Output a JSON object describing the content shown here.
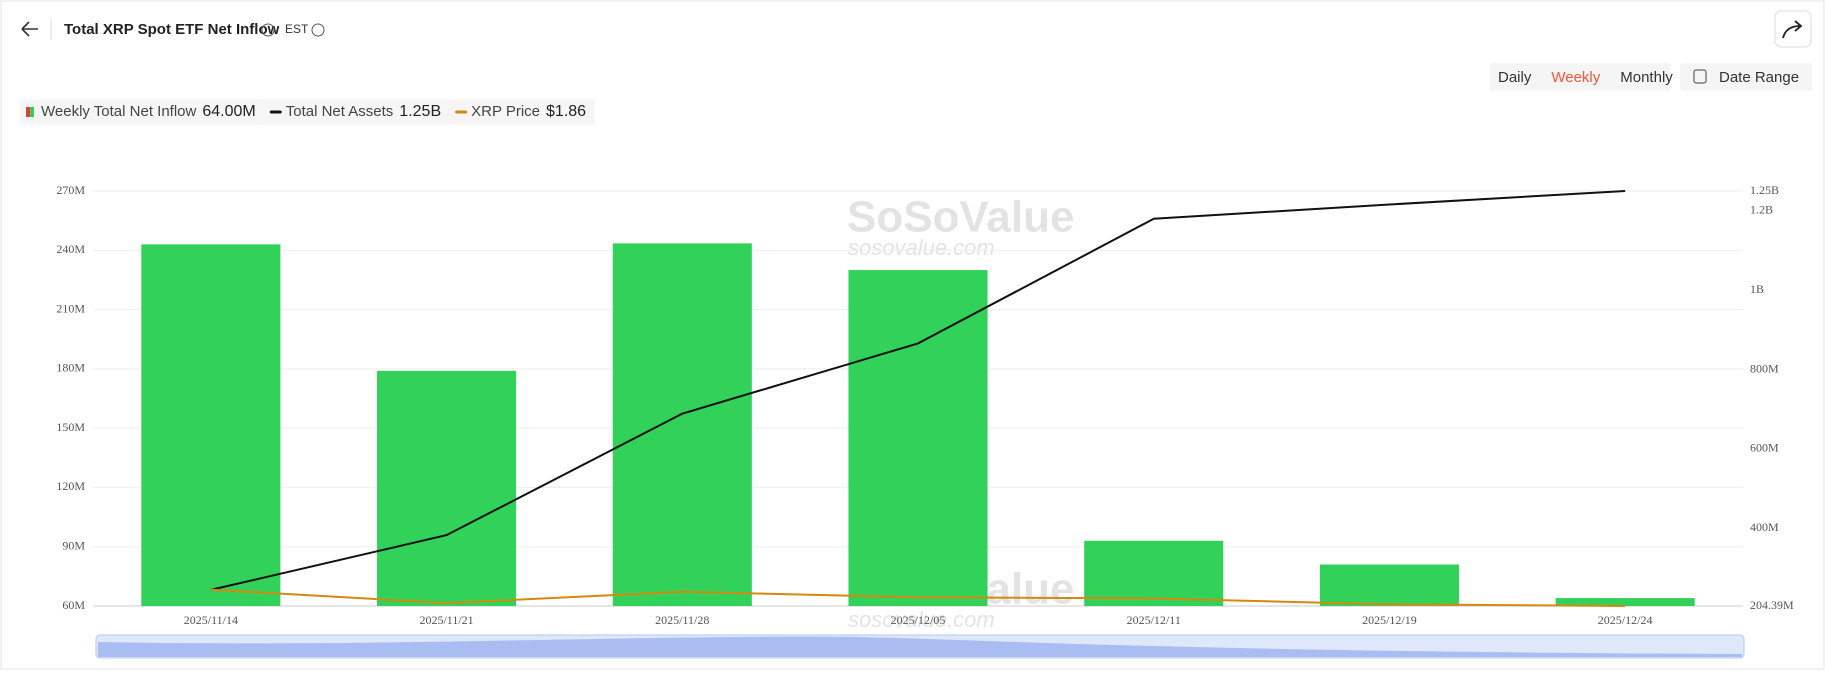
{
  "header": {
    "title": "Total XRP Spot ETF Net Inflow",
    "timezone": "EST"
  },
  "controls": {
    "periods": [
      "Daily",
      "Weekly",
      "Monthly"
    ],
    "active": "Weekly",
    "date_range": "Date Range"
  },
  "watermark": {
    "brand": "SoSoValue",
    "site": "sosovalue.com"
  },
  "legend_values": [
    "64.00M",
    "1.25B",
    "$1.86"
  ],
  "chart_data": {
    "type": "bar",
    "categories": [
      "2025/11/14",
      "2025/11/21",
      "2025/11/28",
      "2025/12/05",
      "2025/12/11",
      "2025/12/19",
      "2025/12/24"
    ],
    "series": [
      {
        "name": "Weekly Total Net Inflow",
        "color": "#32d15a",
        "values": [
          243,
          179,
          243.5,
          230,
          93,
          81,
          64
        ]
      },
      {
        "name": "Total Net Assets",
        "color": "#111111",
        "axis": "y2",
        "type": "line",
        "values": [
          245,
          383,
          689,
          866,
          1180,
          1216,
          1250
        ]
      },
      {
        "name": "XRP Price",
        "color": "#d4890f",
        "axis": "y3",
        "type": "line",
        "values": [
          2.25,
          1.93,
          2.2,
          2.07,
          2.04,
          1.9,
          1.86
        ]
      }
    ],
    "ylim": [
      60,
      270
    ],
    "yticks": [
      {
        "value": 60,
        "label": "60M"
      },
      {
        "value": 90,
        "label": "90M"
      },
      {
        "value": 120,
        "label": "120M"
      },
      {
        "value": 150,
        "label": "150M"
      },
      {
        "value": 180,
        "label": "180M"
      },
      {
        "value": 210,
        "label": "210M"
      },
      {
        "value": 240,
        "label": "240M"
      },
      {
        "value": 270,
        "label": "270M"
      }
    ],
    "y2lim": [
      204.39,
      1250
    ],
    "y2ticks": [
      {
        "value": 204.39,
        "label": "204.39M"
      },
      {
        "value": 400,
        "label": "400M"
      },
      {
        "value": 600,
        "label": "600M"
      },
      {
        "value": 800,
        "label": "800M"
      },
      {
        "value": 1000,
        "label": "1B"
      },
      {
        "value": 1200,
        "label": "1.2B"
      },
      {
        "value": 1250,
        "label": "1.25B"
      }
    ],
    "y3lim": [
      1.86,
      11.8
    ],
    "grid": true
  }
}
